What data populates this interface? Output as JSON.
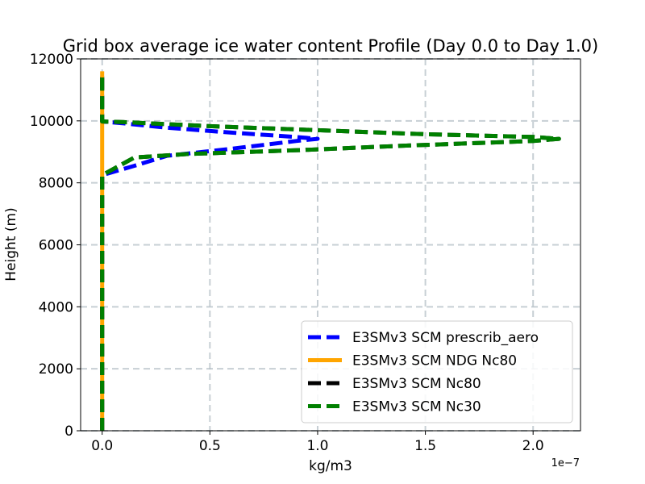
{
  "chart_data": {
    "type": "line",
    "title": "Grid box average ice water content Profile (Day 0.0 to Day 1.0)",
    "xlabel": "kg/m3",
    "ylabel": "Height (m)",
    "x_offset_label": "1e−7",
    "xlim": [
      -0.1,
      2.22
    ],
    "ylim": [
      0,
      12000
    ],
    "x_ticks": [
      0.0,
      0.5,
      1.0,
      1.5,
      2.0
    ],
    "x_tick_labels": [
      "0.0",
      "0.5",
      "1.0",
      "1.5",
      "2.0"
    ],
    "y_ticks": [
      0,
      2000,
      4000,
      6000,
      8000,
      10000,
      12000
    ],
    "y_tick_labels": [
      "0",
      "2000",
      "4000",
      "6000",
      "8000",
      "10000",
      "12000"
    ],
    "grid": true,
    "legend_position": "lower-right",
    "series": [
      {
        "name": "E3SMv3 SCM prescrib_aero",
        "color": "#0000ff",
        "style": "dashed",
        "x": [
          0,
          0,
          0,
          0.15,
          0.3,
          0.6,
          0.9,
          1.0,
          0.9,
          0.6,
          0.3,
          0.1,
          0,
          0,
          0
        ],
        "y": [
          0,
          4000,
          8250,
          8550,
          8870,
          9100,
          9350,
          9420,
          9480,
          9620,
          9780,
          9920,
          9980,
          10800,
          11500
        ]
      },
      {
        "name": "E3SMv3 SCM NDG Nc80",
        "color": "#ffa500",
        "style": "solid",
        "x": [
          0,
          0,
          0,
          0
        ],
        "y": [
          0,
          4000,
          8000,
          11600
        ]
      },
      {
        "name": "E3SMv3 SCM Nc80",
        "color": "#000000",
        "style": "dashed",
        "x": [
          0,
          0,
          0,
          0.15,
          0.4,
          0.9,
          1.4,
          2.0,
          2.12,
          2.0,
          1.5,
          1.0,
          0.5,
          0.1,
          0,
          0,
          0
        ],
        "y": [
          0,
          4000,
          8250,
          8820,
          8930,
          9050,
          9200,
          9350,
          9420,
          9480,
          9570,
          9700,
          9830,
          9960,
          9980,
          10800,
          11500
        ]
      },
      {
        "name": "E3SMv3 SCM Nc30",
        "color": "#008000",
        "style": "dashed",
        "x": [
          0,
          0,
          0,
          0.15,
          0.4,
          0.9,
          1.4,
          2.0,
          2.12,
          2.0,
          1.5,
          1.0,
          0.5,
          0.1,
          0,
          0,
          0
        ],
        "y": [
          0,
          4000,
          8250,
          8820,
          8930,
          9050,
          9200,
          9350,
          9420,
          9480,
          9570,
          9700,
          9830,
          9960,
          9980,
          10800,
          11500
        ]
      }
    ]
  }
}
